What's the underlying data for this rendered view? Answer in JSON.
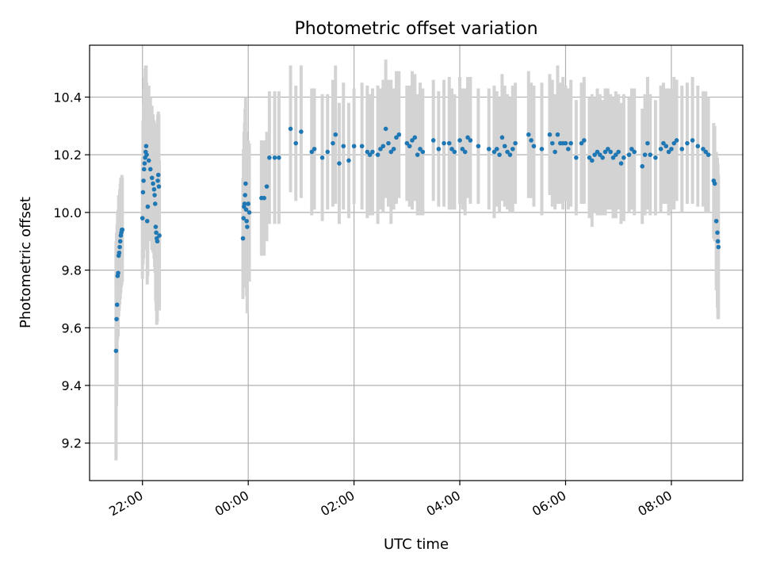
{
  "chart_data": {
    "type": "scatter",
    "title": "Photometric offset variation",
    "xlabel": "UTC time",
    "ylabel": "Photometric offset",
    "x_tick_labels": [
      "22:00",
      "00:00",
      "02:00",
      "04:00",
      "06:00",
      "08:00"
    ],
    "x_tick_hours": [
      22,
      24,
      26,
      28,
      30,
      32
    ],
    "x_range_hours": [
      21.0,
      33.35
    ],
    "y_ticks": [
      9.2,
      9.4,
      9.6,
      9.8,
      10.0,
      10.2,
      10.4
    ],
    "ylim": [
      9.07,
      10.58
    ],
    "grid": true,
    "series": [
      {
        "color": "#1f77b4",
        "errorbar_color": "#d3d3d3",
        "x_hours": [
          21.5,
          21.51,
          21.52,
          21.53,
          21.54,
          21.55,
          21.56,
          21.57,
          21.58,
          21.59,
          21.6,
          21.61,
          21.62,
          22.0,
          22.01,
          22.02,
          22.03,
          22.04,
          22.05,
          22.06,
          22.07,
          22.08,
          22.09,
          22.1,
          22.12,
          22.15,
          22.18,
          22.2,
          22.22,
          22.23,
          22.24,
          22.25,
          22.26,
          22.27,
          22.28,
          22.29,
          22.3,
          22.31,
          22.32,
          23.9,
          23.91,
          23.92,
          23.93,
          23.94,
          23.95,
          23.96,
          23.97,
          23.98,
          24.0,
          24.02,
          24.25,
          24.3,
          24.35,
          24.4,
          24.5,
          24.58,
          24.8,
          24.9,
          25.0,
          25.2,
          25.25,
          25.4,
          25.5,
          25.6,
          25.65,
          25.72,
          25.8,
          25.9,
          26.0,
          26.15,
          26.25,
          26.3,
          26.35,
          26.45,
          26.5,
          26.55,
          26.6,
          26.65,
          26.7,
          26.75,
          26.8,
          26.85,
          27.0,
          27.05,
          27.1,
          27.15,
          27.2,
          27.25,
          27.3,
          27.5,
          27.6,
          27.7,
          27.8,
          27.85,
          27.9,
          28.0,
          28.05,
          28.1,
          28.15,
          28.2,
          28.35,
          28.55,
          28.65,
          28.7,
          28.75,
          28.8,
          28.85,
          28.9,
          28.95,
          29.0,
          29.05,
          29.3,
          29.35,
          29.4,
          29.55,
          29.7,
          29.75,
          29.8,
          29.85,
          29.9,
          29.95,
          30.0,
          30.05,
          30.1,
          30.2,
          30.3,
          30.35,
          30.45,
          30.5,
          30.55,
          30.6,
          30.65,
          30.7,
          30.75,
          30.8,
          30.85,
          30.9,
          30.95,
          31.0,
          31.05,
          31.1,
          31.2,
          31.25,
          31.3,
          31.45,
          31.5,
          31.55,
          31.6,
          31.7,
          31.8,
          31.85,
          31.9,
          31.95,
          32.0,
          32.05,
          32.1,
          32.2,
          32.3,
          32.4,
          32.5,
          32.6,
          32.65,
          32.7,
          32.8,
          32.82,
          32.85,
          32.87,
          32.88,
          32.89
        ],
        "y": [
          9.52,
          9.63,
          9.68,
          9.78,
          9.79,
          9.85,
          9.86,
          9.88,
          9.9,
          9.92,
          9.93,
          9.94,
          9.94,
          9.98,
          10.07,
          10.11,
          10.15,
          10.17,
          10.19,
          10.21,
          10.23,
          10.2,
          9.97,
          10.02,
          10.18,
          10.15,
          10.12,
          10.1,
          10.08,
          10.06,
          10.03,
          9.95,
          9.93,
          9.91,
          9.9,
          10.11,
          10.13,
          10.09,
          9.92,
          9.91,
          9.98,
          10.02,
          10.03,
          10.06,
          10.1,
          10.01,
          9.97,
          9.95,
          10.03,
          10.0,
          10.05,
          10.05,
          10.09,
          10.19,
          10.19,
          10.19,
          10.29,
          10.24,
          10.28,
          10.21,
          10.22,
          10.19,
          10.21,
          10.24,
          10.27,
          10.17,
          10.23,
          10.18,
          10.23,
          10.23,
          10.21,
          10.2,
          10.21,
          10.2,
          10.22,
          10.23,
          10.29,
          10.24,
          10.21,
          10.22,
          10.26,
          10.27,
          10.24,
          10.23,
          10.25,
          10.26,
          10.2,
          10.22,
          10.21,
          10.25,
          10.22,
          10.24,
          10.24,
          10.22,
          10.21,
          10.25,
          10.22,
          10.21,
          10.26,
          10.25,
          10.23,
          10.22,
          10.21,
          10.22,
          10.2,
          10.26,
          10.23,
          10.21,
          10.2,
          10.22,
          10.24,
          10.27,
          10.25,
          10.23,
          10.22,
          10.27,
          10.24,
          10.21,
          10.27,
          10.24,
          10.24,
          10.24,
          10.22,
          10.24,
          10.19,
          10.24,
          10.25,
          10.19,
          10.18,
          10.2,
          10.21,
          10.2,
          10.19,
          10.21,
          10.22,
          10.21,
          10.19,
          10.2,
          10.21,
          10.17,
          10.19,
          10.2,
          10.22,
          10.21,
          10.16,
          10.2,
          10.24,
          10.2,
          10.19,
          10.22,
          10.24,
          10.23,
          10.21,
          10.22,
          10.24,
          10.25,
          10.22,
          10.24,
          10.25,
          10.23,
          10.22,
          10.21,
          10.2,
          10.11,
          10.1,
          9.97,
          9.93,
          9.9,
          9.88
        ],
        "err": [
          0.38,
          0.3,
          0.28,
          0.22,
          0.22,
          0.21,
          0.2,
          0.2,
          0.2,
          0.2,
          0.19,
          0.19,
          0.18,
          0.21,
          0.25,
          0.27,
          0.28,
          0.3,
          0.31,
          0.3,
          0.28,
          0.25,
          0.22,
          0.24,
          0.26,
          0.25,
          0.25,
          0.24,
          0.24,
          0.25,
          0.24,
          0.26,
          0.27,
          0.3,
          0.28,
          0.23,
          0.22,
          0.25,
          0.26,
          0.21,
          0.24,
          0.26,
          0.28,
          0.3,
          0.3,
          0.27,
          0.26,
          0.3,
          0.22,
          0.24,
          0.2,
          0.2,
          0.19,
          0.23,
          0.23,
          0.23,
          0.22,
          0.2,
          0.23,
          0.22,
          0.21,
          0.22,
          0.2,
          0.22,
          0.24,
          0.21,
          0.22,
          0.2,
          0.2,
          0.22,
          0.23,
          0.21,
          0.22,
          0.24,
          0.21,
          0.23,
          0.24,
          0.22,
          0.25,
          0.21,
          0.23,
          0.22,
          0.2,
          0.21,
          0.24,
          0.22,
          0.21,
          0.23,
          0.22,
          0.21,
          0.2,
          0.22,
          0.23,
          0.21,
          0.2,
          0.22,
          0.21,
          0.22,
          0.21,
          0.22,
          0.2,
          0.21,
          0.23,
          0.2,
          0.2,
          0.22,
          0.21,
          0.2,
          0.2,
          0.22,
          0.21,
          0.22,
          0.2,
          0.21,
          0.23,
          0.21,
          0.22,
          0.2,
          0.24,
          0.21,
          0.23,
          0.2,
          0.21,
          0.22,
          0.2,
          0.21,
          0.22,
          0.21,
          0.23,
          0.2,
          0.22,
          0.21,
          0.2,
          0.22,
          0.21,
          0.2,
          0.21,
          0.22,
          0.2,
          0.21,
          0.22,
          0.2,
          0.21,
          0.22,
          0.2,
          0.21,
          0.23,
          0.21,
          0.2,
          0.22,
          0.21,
          0.2,
          0.22,
          0.21,
          0.23,
          0.21,
          0.22,
          0.21,
          0.22,
          0.21,
          0.2,
          0.21,
          0.2,
          0.2,
          0.2,
          0.24,
          0.26,
          0.27,
          0.25
        ]
      }
    ]
  }
}
